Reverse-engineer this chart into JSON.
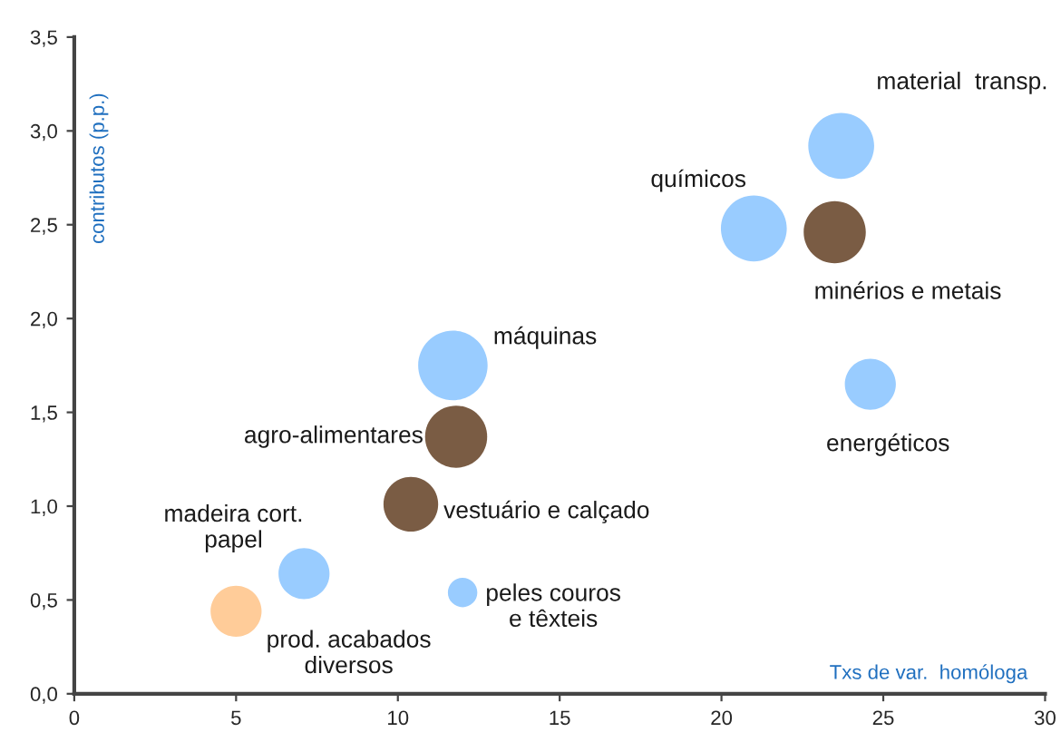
{
  "chart_data": {
    "type": "bubble",
    "xlabel": "Txs de var.  homóloga",
    "ylabel": "contributos (p.p.)",
    "series": [
      {
        "name": "material  transp.",
        "color": "#99ccff",
        "x": [
          23.7
        ],
        "values": [
          2.92
        ],
        "sizes": [
          0.9
        ]
      },
      {
        "name": "químicos",
        "color": "#99ccff",
        "x": [
          21.0
        ],
        "values": [
          2.48
        ],
        "sizes": [
          0.9
        ]
      },
      {
        "name": "minérios e metais",
        "color": "#7a5c44",
        "x": [
          23.5
        ],
        "values": [
          2.46
        ],
        "sizes": [
          0.8
        ]
      },
      {
        "name": "máquinas",
        "color": "#99ccff",
        "x": [
          11.7
        ],
        "values": [
          1.75
        ],
        "sizes": [
          1
        ]
      },
      {
        "name": "agro-alimentares",
        "color": "#7a5c44",
        "x": [
          11.8
        ],
        "values": [
          1.37
        ],
        "sizes": [
          0.8
        ]
      },
      {
        "name": "vestuário e calçado",
        "color": "#7a5c44",
        "x": [
          10.4
        ],
        "values": [
          1.01
        ],
        "sizes": [
          0.62
        ]
      },
      {
        "name": "energéticos",
        "color": "#99ccff",
        "x": [
          24.6
        ],
        "values": [
          1.65
        ],
        "sizes": [
          0.54
        ]
      },
      {
        "name": "madeira cort.\npapel",
        "color": "#99ccff",
        "x": [
          7.1
        ],
        "values": [
          0.64
        ],
        "sizes": [
          0.54
        ]
      },
      {
        "name": "prod. acabados\ndiversos",
        "color": "#ffcc99",
        "x": [
          5.0
        ],
        "values": [
          0.44
        ],
        "sizes": [
          0.54
        ]
      },
      {
        "name": "peles couros\ne têxteis",
        "color": "#99ccff",
        "x": [
          12.0
        ],
        "values": [
          0.54
        ],
        "sizes": [
          0.18
        ]
      }
    ],
    "xlim": [
      0,
      30
    ],
    "xticks": [
      0,
      5,
      10,
      15,
      20,
      25,
      30
    ],
    "ylim": [
      0,
      3.5
    ],
    "yticks": [
      {
        "value": 0,
        "label": "0,0"
      },
      {
        "value": 0.5,
        "label": "0,5"
      },
      {
        "value": 1,
        "label": "1,0"
      },
      {
        "value": 1.5,
        "label": "1,5"
      },
      {
        "value": 2,
        "label": "2,0"
      },
      {
        "value": 2.5,
        "label": "2,5"
      },
      {
        "value": 3,
        "label": "3,0"
      },
      {
        "value": 3.5,
        "label": "3,5"
      }
    ],
    "grid": false,
    "legend": false
  }
}
